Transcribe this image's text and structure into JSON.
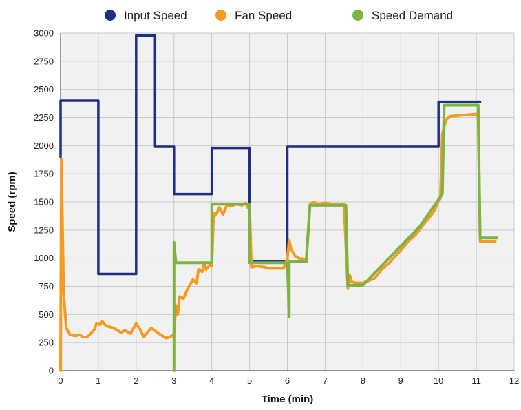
{
  "chart_data": {
    "type": "line",
    "xlabel": "Time (min)",
    "ylabel": "Speed (rpm)",
    "xlim": [
      0,
      12
    ],
    "ylim": [
      0,
      3000
    ],
    "x_ticks": [
      0,
      1,
      2,
      3,
      4,
      5,
      6,
      7,
      8,
      9,
      10,
      11,
      12
    ],
    "y_ticks": [
      0,
      250,
      500,
      750,
      1000,
      1250,
      1500,
      1750,
      2000,
      2250,
      2500,
      2750,
      3000
    ],
    "grid": true,
    "legend_position": "top",
    "series": [
      {
        "name": "Input Speed",
        "color": "#1f2f86",
        "points": [
          [
            0,
            1900
          ],
          [
            0,
            2400
          ],
          [
            1,
            2400
          ],
          [
            1,
            860
          ],
          [
            2,
            860
          ],
          [
            2,
            2980
          ],
          [
            2.5,
            2980
          ],
          [
            2.5,
            1990
          ],
          [
            3,
            1990
          ],
          [
            3,
            1570
          ],
          [
            4,
            1570
          ],
          [
            4,
            1980
          ],
          [
            5,
            1980
          ],
          [
            5,
            970
          ],
          [
            6,
            970
          ],
          [
            6,
            1990
          ],
          [
            10,
            1990
          ],
          [
            10,
            2390
          ],
          [
            11.1,
            2390
          ]
        ]
      },
      {
        "name": "Fan Speed",
        "color": "#f59a23",
        "points": [
          [
            0,
            0
          ],
          [
            0.02,
            1880
          ],
          [
            0.08,
            700
          ],
          [
            0.15,
            380
          ],
          [
            0.25,
            320
          ],
          [
            0.4,
            310
          ],
          [
            0.5,
            320
          ],
          [
            0.6,
            300
          ],
          [
            0.7,
            300
          ],
          [
            0.8,
            330
          ],
          [
            0.9,
            370
          ],
          [
            0.95,
            420
          ],
          [
            1.05,
            410
          ],
          [
            1.1,
            440
          ],
          [
            1.2,
            400
          ],
          [
            1.4,
            380
          ],
          [
            1.6,
            340
          ],
          [
            1.7,
            360
          ],
          [
            1.85,
            330
          ],
          [
            2.0,
            420
          ],
          [
            2.1,
            370
          ],
          [
            2.2,
            300
          ],
          [
            2.4,
            380
          ],
          [
            2.6,
            330
          ],
          [
            2.8,
            290
          ],
          [
            2.95,
            310
          ],
          [
            3.0,
            330
          ],
          [
            3.05,
            580
          ],
          [
            3.1,
            500
          ],
          [
            3.15,
            660
          ],
          [
            3.25,
            640
          ],
          [
            3.35,
            720
          ],
          [
            3.5,
            810
          ],
          [
            3.6,
            780
          ],
          [
            3.65,
            900
          ],
          [
            3.75,
            880
          ],
          [
            3.8,
            960
          ],
          [
            3.85,
            900
          ],
          [
            3.95,
            940
          ],
          [
            4.0,
            930
          ],
          [
            4.05,
            1400
          ],
          [
            4.1,
            1380
          ],
          [
            4.2,
            1450
          ],
          [
            4.3,
            1390
          ],
          [
            4.4,
            1470
          ],
          [
            4.5,
            1460
          ],
          [
            4.65,
            1480
          ],
          [
            4.8,
            1470
          ],
          [
            4.9,
            1490
          ],
          [
            4.95,
            1450
          ],
          [
            5.0,
            1460
          ],
          [
            5.05,
            920
          ],
          [
            5.2,
            930
          ],
          [
            5.4,
            920
          ],
          [
            5.5,
            910
          ],
          [
            5.9,
            910
          ],
          [
            6.0,
            1000
          ],
          [
            6.05,
            1160
          ],
          [
            6.1,
            1080
          ],
          [
            6.2,
            1020
          ],
          [
            6.3,
            1000
          ],
          [
            6.5,
            990
          ],
          [
            6.6,
            1480
          ],
          [
            6.7,
            1500
          ],
          [
            6.8,
            1480
          ],
          [
            7.0,
            1490
          ],
          [
            7.2,
            1480
          ],
          [
            7.5,
            1480
          ],
          [
            7.6,
            730
          ],
          [
            7.65,
            850
          ],
          [
            7.7,
            790
          ],
          [
            7.8,
            780
          ],
          [
            8.0,
            780
          ],
          [
            8.3,
            820
          ],
          [
            8.5,
            900
          ],
          [
            8.7,
            960
          ],
          [
            9.0,
            1070
          ],
          [
            9.2,
            1150
          ],
          [
            9.4,
            1210
          ],
          [
            9.6,
            1300
          ],
          [
            9.8,
            1380
          ],
          [
            9.9,
            1430
          ],
          [
            10.0,
            1510
          ],
          [
            10.05,
            1530
          ],
          [
            10.1,
            2100
          ],
          [
            10.2,
            2230
          ],
          [
            10.3,
            2260
          ],
          [
            10.6,
            2270
          ],
          [
            11.0,
            2280
          ],
          [
            11.05,
            2250
          ],
          [
            11.1,
            1150
          ],
          [
            11.5,
            1150
          ]
        ]
      },
      {
        "name": "Speed Demand",
        "color": "#7cb342",
        "points": [
          [
            3,
            0
          ],
          [
            3,
            1140
          ],
          [
            3.05,
            960
          ],
          [
            4,
            960
          ],
          [
            4,
            1480
          ],
          [
            5,
            1480
          ],
          [
            5,
            960
          ],
          [
            5.8,
            960
          ],
          [
            6,
            960
          ],
          [
            6.05,
            480
          ],
          [
            6.05,
            970
          ],
          [
            6.5,
            970
          ],
          [
            6.6,
            1470
          ],
          [
            7.55,
            1470
          ],
          [
            7.6,
            760
          ],
          [
            8,
            760
          ],
          [
            9.5,
            1280
          ],
          [
            10.1,
            1570
          ],
          [
            10.15,
            2360
          ],
          [
            11.05,
            2360
          ],
          [
            11.1,
            1180
          ],
          [
            11.55,
            1180
          ]
        ]
      }
    ]
  }
}
